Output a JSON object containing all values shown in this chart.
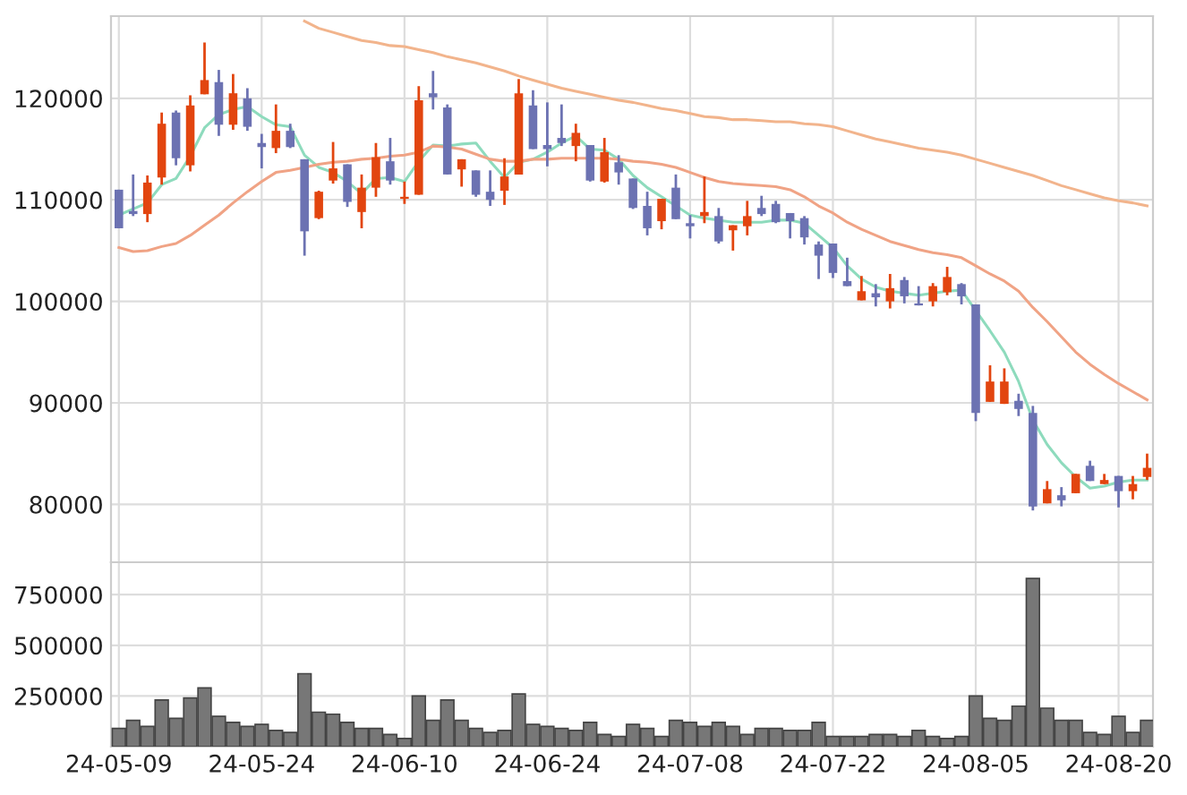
{
  "chart_data": [
    {
      "type": "candlestick",
      "categories": [
        null,
        null,
        null,
        null,
        null,
        null,
        null,
        null,
        null,
        null,
        null,
        null,
        null,
        null,
        null,
        null,
        null,
        null,
        null,
        null,
        null,
        null,
        null,
        null,
        null,
        null,
        null,
        null,
        null,
        null,
        null,
        null,
        null,
        null,
        null,
        null,
        null,
        null,
        null,
        null,
        null,
        null,
        null,
        null,
        null,
        null,
        null,
        null,
        null,
        null,
        null,
        null,
        null,
        null,
        null,
        null,
        null,
        null,
        null,
        null,
        null,
        null,
        null,
        null,
        null,
        null,
        null,
        null,
        null,
        null,
        null,
        null,
        null
      ],
      "ohlc": [
        [
          111000,
          111000,
          107200,
          107200
        ],
        [
          108900,
          112500,
          108400,
          108600
        ],
        [
          108600,
          112400,
          107800,
          111700
        ],
        [
          112200,
          118600,
          111500,
          117500
        ],
        [
          118600,
          118800,
          113400,
          114100
        ],
        [
          113400,
          120300,
          112800,
          119300
        ],
        [
          120400,
          125500,
          120400,
          121800
        ],
        [
          121600,
          122800,
          116300,
          117400
        ],
        [
          117400,
          122400,
          116900,
          120500
        ],
        [
          120000,
          121000,
          116800,
          117200
        ],
        [
          115600,
          116500,
          113100,
          115200
        ],
        [
          115100,
          119400,
          114600,
          116800
        ],
        [
          116800,
          117500,
          115100,
          115200
        ],
        [
          114000,
          114000,
          104500,
          106900
        ],
        [
          108200,
          110900,
          108100,
          110800
        ],
        [
          111900,
          115700,
          111600,
          113100
        ],
        [
          113500,
          113500,
          109300,
          109800
        ],
        [
          108800,
          112500,
          107200,
          111200
        ],
        [
          111200,
          115600,
          110300,
          114200
        ],
        [
          113800,
          116100,
          111500,
          111900
        ],
        [
          110100,
          111800,
          109600,
          110300
        ],
        [
          110500,
          121200,
          110500,
          119800
        ],
        [
          120500,
          122700,
          118900,
          120100
        ],
        [
          119100,
          119400,
          112500,
          112500
        ],
        [
          113000,
          114000,
          111300,
          114000
        ],
        [
          112900,
          112900,
          110300,
          110500
        ],
        [
          110800,
          112900,
          109400,
          110000
        ],
        [
          110900,
          114100,
          109500,
          112300
        ],
        [
          112500,
          121900,
          112500,
          120500
        ],
        [
          119300,
          120800,
          115000,
          115000
        ],
        [
          115400,
          119600,
          113300,
          115000
        ],
        [
          116100,
          119400,
          115300,
          115600
        ],
        [
          115300,
          117500,
          113800,
          116600
        ],
        [
          115400,
          115400,
          111800,
          111900
        ],
        [
          111800,
          116100,
          111700,
          114700
        ],
        [
          113700,
          114400,
          111500,
          112700
        ],
        [
          112100,
          112100,
          109100,
          109200
        ],
        [
          109400,
          110800,
          106500,
          107200
        ],
        [
          107900,
          110100,
          107100,
          110100
        ],
        [
          111200,
          112500,
          108100,
          108100
        ],
        [
          107700,
          108500,
          106200,
          107400
        ],
        [
          108400,
          112300,
          107700,
          108800
        ],
        [
          108400,
          109200,
          105700,
          105900
        ],
        [
          107000,
          107500,
          105000,
          107500
        ],
        [
          107400,
          109900,
          106500,
          108400
        ],
        [
          109200,
          110400,
          108400,
          108600
        ],
        [
          109600,
          109900,
          107700,
          107800
        ],
        [
          108700,
          108700,
          106200,
          107900
        ],
        [
          108200,
          108400,
          105600,
          106300
        ],
        [
          105600,
          105900,
          102200,
          104500
        ],
        [
          105700,
          105700,
          102300,
          102800
        ],
        [
          102000,
          104300,
          101500,
          101500
        ],
        [
          100100,
          102500,
          100100,
          101000
        ],
        [
          100800,
          101700,
          99500,
          100400
        ],
        [
          100000,
          102700,
          99300,
          101300
        ],
        [
          102100,
          102400,
          99800,
          100500
        ],
        [
          99800,
          101500,
          99600,
          99600
        ],
        [
          100000,
          101800,
          99500,
          101500
        ],
        [
          100900,
          103400,
          100600,
          102400
        ],
        [
          101700,
          101800,
          99700,
          100500
        ],
        [
          99700,
          99700,
          88200,
          89000
        ],
        [
          90100,
          93700,
          90100,
          92100
        ],
        [
          89900,
          93400,
          89900,
          92100
        ],
        [
          90200,
          90900,
          88700,
          89400
        ],
        [
          89000,
          89700,
          79400,
          79800
        ],
        [
          80100,
          82300,
          80100,
          81500
        ],
        [
          80900,
          81700,
          79800,
          80400
        ],
        [
          81100,
          83000,
          81100,
          83000
        ],
        [
          83800,
          84300,
          82300,
          82300
        ],
        [
          82000,
          83000,
          82000,
          82400
        ],
        [
          82800,
          82800,
          79700,
          81300
        ],
        [
          81300,
          82800,
          80500,
          82000
        ],
        [
          82700,
          85000,
          82400,
          83600
        ]
      ],
      "colors": [
        "#6c72b2",
        "#6c72b2",
        "#e2450f",
        "#e2450f",
        "#6c72b2",
        "#e2450f",
        "#e2450f",
        "#6c72b2",
        "#e2450f",
        "#6c72b2",
        "#6c72b2",
        "#e2450f",
        "#6c72b2",
        "#6c72b2",
        "#e2450f",
        "#e2450f",
        "#6c72b2",
        "#e2450f",
        "#e2450f",
        "#6c72b2",
        "#e2450f",
        "#e2450f",
        "#6c72b2",
        "#6c72b2",
        "#e2450f",
        "#6c72b2",
        "#6c72b2",
        "#e2450f",
        "#e2450f",
        "#6c72b2",
        "#6c72b2",
        "#6c72b2",
        "#e2450f",
        "#6c72b2",
        "#e2450f",
        "#6c72b2",
        "#6c72b2",
        "#6c72b2",
        "#e2450f",
        "#6c72b2",
        "#6c72b2",
        "#e2450f",
        "#6c72b2",
        "#e2450f",
        "#e2450f",
        "#6c72b2",
        "#6c72b2",
        "#6c72b2",
        "#6c72b2",
        "#6c72b2",
        "#6c72b2",
        "#6c72b2",
        "#e2450f",
        "#6c72b2",
        "#e2450f",
        "#6c72b2",
        "#6c72b2",
        "#e2450f",
        "#e2450f",
        "#6c72b2",
        "#6c72b2",
        "#e2450f",
        "#e2450f",
        "#6c72b2",
        "#6c72b2",
        "#e2450f",
        "#6c72b2",
        "#e2450f",
        "#6c72b2",
        "#e2450f",
        "#6c72b2",
        "#e2450f",
        "#e2450f"
      ],
      "series": [
        {
          "type": "line",
          "color": "#8edbbd",
          "values": [
            108500,
            109100,
            109700,
            111500,
            112100,
            114300,
            117100,
            118400,
            118900,
            119200,
            118200,
            117400,
            117200,
            114400,
            113200,
            112700,
            111800,
            110600,
            112100,
            112200,
            111800,
            113800,
            115400,
            115300,
            115500,
            115600,
            113800,
            112200,
            113700,
            114000,
            114700,
            115600,
            116300,
            115000,
            114900,
            114000,
            112400,
            111200,
            110300,
            109400,
            108500,
            108200,
            108000,
            107800,
            107800,
            107800,
            108000,
            108000,
            107700,
            106500,
            105300,
            103500,
            102200,
            101400,
            101000,
            100800,
            100600,
            100800,
            101000,
            101100,
            99100,
            97100,
            95000,
            92100,
            88300,
            85900,
            84100,
            82700,
            81600,
            81800,
            82200,
            82400,
            82400
          ]
        },
        {
          "type": "line",
          "color": "#f0a385",
          "values": [
            105300,
            104900,
            105000,
            105400,
            105700,
            106500,
            107500,
            108500,
            109700,
            110800,
            111800,
            112700,
            112900,
            113200,
            113500,
            113700,
            113800,
            114000,
            114100,
            114300,
            114400,
            114700,
            115300,
            115200,
            115000,
            114500,
            114000,
            113800,
            113800,
            114000,
            114000,
            114100,
            114100,
            114100,
            114100,
            114000,
            113800,
            113700,
            113500,
            113200,
            112700,
            112200,
            111800,
            111600,
            111500,
            111400,
            111300,
            111000,
            110300,
            109400,
            108700,
            107800,
            107100,
            106500,
            105900,
            105500,
            105100,
            104800,
            104600,
            104300,
            103500,
            102700,
            102000,
            101000,
            99400,
            98000,
            96500,
            95000,
            93800,
            92800,
            91900,
            91100,
            90300
          ]
        },
        {
          "type": "line",
          "color": "#f2b48c",
          "values": [
            null,
            null,
            null,
            null,
            null,
            null,
            null,
            null,
            null,
            null,
            null,
            null,
            null,
            127600,
            126900,
            126500,
            126100,
            125700,
            125500,
            125200,
            125100,
            124800,
            124500,
            124100,
            123800,
            123500,
            123100,
            122700,
            122200,
            121800,
            121400,
            121000,
            120700,
            120400,
            120100,
            119800,
            119600,
            119300,
            119000,
            118800,
            118500,
            118200,
            118100,
            117900,
            117900,
            117800,
            117700,
            117700,
            117500,
            117400,
            117200,
            116800,
            116400,
            116000,
            115700,
            115400,
            115100,
            114900,
            114700,
            114400,
            114000,
            113600,
            113200,
            112800,
            112400,
            111900,
            111400,
            111000,
            110600,
            110200,
            109900,
            109700,
            109400
          ]
        }
      ],
      "ylim": [
        74300,
        128100
      ],
      "yticks": [
        80000,
        90000,
        100000,
        110000,
        120000
      ],
      "grid": true,
      "tick_labels": "y"
    },
    {
      "type": "bar",
      "categories": [
        "24-05-09",
        null,
        null,
        null,
        null,
        null,
        null,
        null,
        null,
        null,
        "24-05-24",
        null,
        null,
        null,
        null,
        null,
        null,
        null,
        null,
        null,
        "24-06-10",
        null,
        null,
        null,
        null,
        null,
        null,
        null,
        null,
        null,
        "24-06-24",
        null,
        null,
        null,
        null,
        null,
        null,
        null,
        null,
        null,
        "24-07-08",
        null,
        null,
        null,
        null,
        null,
        null,
        null,
        null,
        null,
        "24-07-22",
        null,
        null,
        null,
        null,
        null,
        null,
        null,
        null,
        null,
        "24-08-05",
        null,
        null,
        null,
        null,
        null,
        null,
        null,
        null,
        null,
        "24-08-20",
        null,
        null
      ],
      "color": "#777777",
      "values": [
        90000,
        130000,
        100000,
        230000,
        140000,
        240000,
        290000,
        150000,
        120000,
        100000,
        110000,
        80000,
        70000,
        360000,
        170000,
        160000,
        120000,
        90000,
        90000,
        60000,
        40000,
        250000,
        130000,
        230000,
        130000,
        90000,
        70000,
        80000,
        260000,
        110000,
        100000,
        90000,
        80000,
        120000,
        60000,
        50000,
        110000,
        90000,
        50000,
        130000,
        120000,
        100000,
        120000,
        100000,
        60000,
        90000,
        90000,
        80000,
        80000,
        120000,
        50000,
        50000,
        50000,
        60000,
        60000,
        50000,
        80000,
        50000,
        40000,
        50000,
        250000,
        140000,
        130000,
        200000,
        830000,
        190000,
        130000,
        130000,
        70000,
        60000,
        150000,
        70000,
        130000
      ],
      "ylim": [
        0,
        910000
      ],
      "yticks": [
        250000,
        500000,
        750000
      ],
      "grid": true
    }
  ]
}
